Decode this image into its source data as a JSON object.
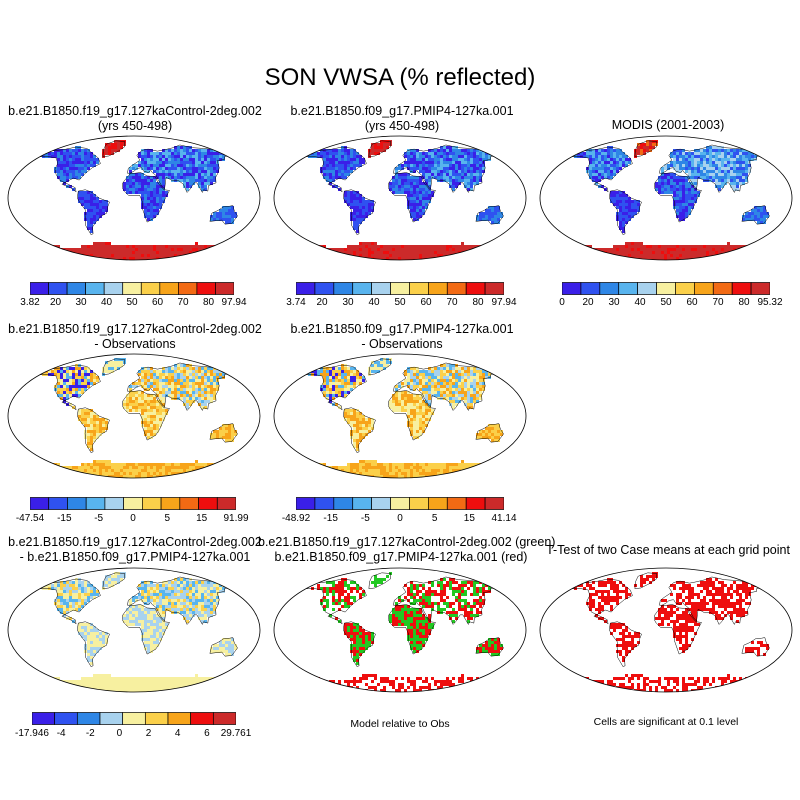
{
  "title": "SON VWSA (% reflected)",
  "panels": [
    {
      "id": "p1",
      "title": [
        "b.e21.B1850.f19_g17.127kaControl-2deg.002",
        "(yrs 450-498)"
      ],
      "fill": "abs-ctrl"
    },
    {
      "id": "p2",
      "title": [
        "b.e21.B1850.f09_g17.PMIP4-127ka.001",
        "(yrs 450-498)"
      ],
      "fill": "abs-pmip"
    },
    {
      "id": "p3",
      "title": [
        "MODIS (2001-2003)"
      ],
      "fill": "abs-obs"
    },
    {
      "id": "p4",
      "title": [
        "b.e21.B1850.f19_g17.127kaControl-2deg.002",
        "- Observations"
      ],
      "fill": "diff"
    },
    {
      "id": "p5",
      "title": [
        "b.e21.B1850.f09_g17.PMIP4-127ka.001",
        "- Observations"
      ],
      "fill": "diff"
    },
    {
      "id": "p6",
      "title": [
        "b.e21.B1850.f19_g17.127kaControl-2deg.002",
        "- b.e21.B1850.f09_g17.PMIP4-127ka.001"
      ],
      "fill": "case-diff"
    },
    {
      "id": "p7",
      "title": [
        "b.e21.B1850.f19_g17.127kaControl-2deg.002 (green)",
        "b.e21.B1850.f09_g17.PMIP4-127ka.001 (red)"
      ],
      "fill": "rel"
    },
    {
      "id": "p8",
      "title": [
        "T-Test of two Case means at each grid point"
      ],
      "fill": "ttest"
    }
  ],
  "colorbars": [
    {
      "id": "cb1",
      "colors": [
        "#3a1fe8",
        "#2f52f0",
        "#2e86e6",
        "#58b4ee",
        "#a8d2ee",
        "#f7f0a0",
        "#fbd04a",
        "#f7a41a",
        "#f26a14",
        "#ee0e0e",
        "#cc2a2a"
      ],
      "labels": [
        "3.82",
        "20",
        "30",
        "40",
        "50",
        "60",
        "70",
        "80",
        "97.94"
      ]
    },
    {
      "id": "cb2",
      "colors": [
        "#3a1fe8",
        "#2f52f0",
        "#2e86e6",
        "#58b4ee",
        "#a8d2ee",
        "#f7f0a0",
        "#fbd04a",
        "#f7a41a",
        "#f26a14",
        "#ee0e0e",
        "#cc2a2a"
      ],
      "labels": [
        "3.74",
        "20",
        "30",
        "40",
        "50",
        "60",
        "70",
        "80",
        "97.94"
      ]
    },
    {
      "id": "cb3",
      "colors": [
        "#3a1fe8",
        "#2f52f0",
        "#2e86e6",
        "#58b4ee",
        "#a8d2ee",
        "#f7f0a0",
        "#fbd04a",
        "#f7a41a",
        "#f26a14",
        "#ee0e0e",
        "#cc2a2a"
      ],
      "labels": [
        "0",
        "20",
        "30",
        "40",
        "50",
        "60",
        "70",
        "80",
        "95.32"
      ]
    },
    {
      "id": "cb4",
      "colors": [
        "#3a1fe8",
        "#2f52f0",
        "#2e86e6",
        "#58b4ee",
        "#a8d2ee",
        "#f7f0a0",
        "#fbd04a",
        "#f7a41a",
        "#f26a14",
        "#ee0e0e",
        "#cc2a2a"
      ],
      "labels": [
        "-47.54",
        "-15",
        "-5",
        "0",
        "5",
        "15",
        "91.99"
      ]
    },
    {
      "id": "cb5",
      "colors": [
        "#3a1fe8",
        "#2f52f0",
        "#2e86e6",
        "#58b4ee",
        "#a8d2ee",
        "#f7f0a0",
        "#fbd04a",
        "#f7a41a",
        "#f26a14",
        "#ee0e0e",
        "#cc2a2a"
      ],
      "labels": [
        "-48.92",
        "-15",
        "-5",
        "0",
        "5",
        "15",
        "41.14"
      ]
    },
    {
      "id": "cb6",
      "colors": [
        "#3a1fe8",
        "#2f52f0",
        "#2e86e6",
        "#a8d2ee",
        "#f7f0a0",
        "#fbd04a",
        "#f7a41a",
        "#ee0e0e",
        "#cc2a2a"
      ],
      "labels": [
        "-17.946",
        "-4",
        "-2",
        "0",
        "2",
        "4",
        "6",
        "29.761"
      ]
    }
  ],
  "notes": {
    "model_relative": "Model relative to Obs",
    "significance": "Cells are significant at 0.1 level"
  }
}
